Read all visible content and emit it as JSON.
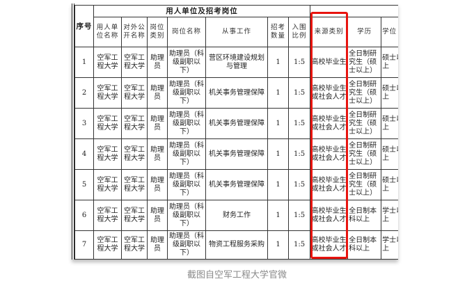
{
  "table": {
    "group_header": "用人单位及招考岗位",
    "seq_header": "序号",
    "headers": [
      "用人单位名称",
      "对外公开名称",
      "岗位类别",
      "岗位名称",
      "从事工作",
      "招考数量",
      "入围比例",
      "来源类别",
      "学历",
      "学位"
    ],
    "rows": [
      {
        "seq": "1",
        "unit": "空军工程大学",
        "public_name": "空军工程大学",
        "category": "助理员",
        "post": "助理员（科级副职以下）",
        "work": "营区环境建设规划与管理",
        "count": "1",
        "ratio": "1:5",
        "source": "高校毕业生",
        "education": "全日制研究生（硕士以上）",
        "degree": "硕士以上"
      },
      {
        "seq": "2",
        "unit": "空军工程大学",
        "public_name": "空军工程大学",
        "category": "助理员",
        "post": "助理员（科级副职以下）",
        "work": "机关事务管理保障",
        "count": "1",
        "ratio": "1:5",
        "source": "高校毕业生或社会人才",
        "education": "全日制研究生（硕士以上）",
        "degree": "硕士以上"
      },
      {
        "seq": "3",
        "unit": "空军工程大学",
        "public_name": "空军工程大学",
        "category": "助理员",
        "post": "助理员（科级副职以下）",
        "work": "机关事务管理保障",
        "count": "1",
        "ratio": "1:5",
        "source": "高校毕业生或社会人才",
        "education": "全日制研究生（硕士以上）",
        "degree": "硕士以上"
      },
      {
        "seq": "4",
        "unit": "空军工程大学",
        "public_name": "空军工程大学",
        "category": "助理员",
        "post": "助理员（科级副职以下）",
        "work": "机关事务管理保障",
        "count": "1",
        "ratio": "1:5",
        "source": "高校毕业生或社会人才",
        "education": "全日制研究生（硕士以上）",
        "degree": "硕士以上"
      },
      {
        "seq": "5",
        "unit": "空军工程大学",
        "public_name": "空军工程大学",
        "category": "助理员",
        "post": "助理员（科级副职以下）",
        "work": "机关事务管理保障",
        "count": "1",
        "ratio": "1:5",
        "source": "高校毕业生或社会人才",
        "education": "全日制研究生（硕士以上）",
        "degree": "硕士以上"
      },
      {
        "seq": "6",
        "unit": "空军工程大学",
        "public_name": "空军工程大学",
        "category": "助理员",
        "post": "助理员（科级副职以下）",
        "work": "财务工作",
        "count": "1",
        "ratio": "1:5",
        "source": "高校毕业生或社会人才",
        "education": "全日制本科以上",
        "degree": "学士以上"
      },
      {
        "seq": "7",
        "unit": "空军工程大学",
        "public_name": "空军工程大学",
        "category": "助理员",
        "post": "助理员（科级副职以下）",
        "work": "物资工程服务采购",
        "count": "1",
        "ratio": "1:5",
        "source": "高校毕业生或社会人才",
        "education": "全日制本科以上",
        "degree": "学士以上"
      }
    ]
  },
  "highlight_color": "#e8140f",
  "caption": "截图自空军工程大学官微"
}
